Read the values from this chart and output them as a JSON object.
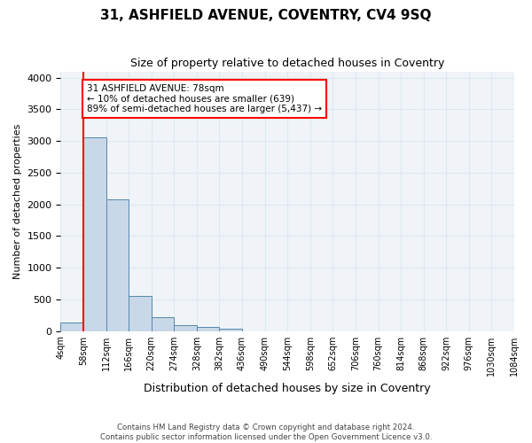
{
  "title": "31, ASHFIELD AVENUE, COVENTRY, CV4 9SQ",
  "subtitle": "Size of property relative to detached houses in Coventry",
  "xlabel": "Distribution of detached houses by size in Coventry",
  "ylabel": "Number of detached properties",
  "footnote1": "Contains HM Land Registry data © Crown copyright and database right 2024.",
  "footnote2": "Contains public sector information licensed under the Open Government Licence v3.0.",
  "bin_labels": [
    "4sqm",
    "58sqm",
    "112sqm",
    "166sqm",
    "220sqm",
    "274sqm",
    "328sqm",
    "382sqm",
    "436sqm",
    "490sqm",
    "544sqm",
    "598sqm",
    "652sqm",
    "706sqm",
    "760sqm",
    "814sqm",
    "868sqm",
    "922sqm",
    "976sqm",
    "1030sqm",
    "1084sqm"
  ],
  "bar_values": [
    130,
    3060,
    2080,
    560,
    220,
    90,
    60,
    40,
    0,
    0,
    0,
    0,
    0,
    0,
    0,
    0,
    0,
    0,
    0,
    0
  ],
  "bar_color": "#c8d8e8",
  "bar_edge_color": "#5588aa",
  "grid_color": "#dde8f0",
  "background_color": "#f0f4f8",
  "property_line_x": 1,
  "property_line_color": "red",
  "annotation_text": "31 ASHFIELD AVENUE: 78sqm\n← 10% of detached houses are smaller (639)\n89% of semi-detached houses are larger (5,437) →",
  "annotation_box_color": "red",
  "ylim": [
    0,
    4100
  ],
  "yticks": [
    0,
    500,
    1000,
    1500,
    2000,
    2500,
    3000,
    3500,
    4000
  ]
}
